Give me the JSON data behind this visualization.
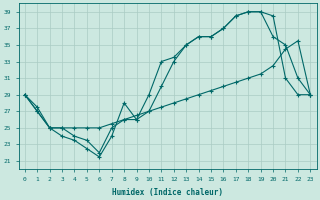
{
  "xlabel": "Humidex (Indice chaleur)",
  "bg_color": "#cce8e0",
  "grid_color": "#aaccc4",
  "line_color": "#006868",
  "xlim": [
    -0.5,
    23.5
  ],
  "ylim": [
    20,
    40
  ],
  "xticks": [
    0,
    1,
    2,
    3,
    4,
    5,
    6,
    7,
    8,
    9,
    10,
    11,
    12,
    13,
    14,
    15,
    16,
    17,
    18,
    19,
    20,
    21,
    22,
    23
  ],
  "yticks": [
    21,
    23,
    25,
    27,
    29,
    31,
    33,
    35,
    37,
    39
  ],
  "line1_x": [
    0,
    1,
    2,
    3,
    4,
    5,
    6,
    7,
    8,
    9,
    10,
    11,
    12,
    13,
    14,
    15,
    16,
    17,
    18,
    19,
    20,
    21,
    22,
    23
  ],
  "line1_y": [
    29,
    27,
    25,
    24,
    23.5,
    22.5,
    21.5,
    24,
    28,
    26,
    27,
    30,
    33,
    35,
    36,
    36,
    37,
    38.5,
    39,
    39,
    38.5,
    31,
    29,
    29
  ],
  "line2_x": [
    0,
    1,
    2,
    3,
    4,
    5,
    6,
    7,
    8,
    9,
    10,
    11,
    12,
    13,
    14,
    15,
    16,
    17,
    18,
    19,
    20,
    21,
    22,
    23
  ],
  "line2_y": [
    29,
    27,
    25,
    25,
    24,
    23.5,
    22,
    25,
    26,
    26,
    29,
    33,
    33.5,
    35,
    36,
    36,
    37,
    38.5,
    39,
    39,
    36,
    35,
    31,
    29
  ],
  "line3_x": [
    0,
    1,
    2,
    3,
    4,
    5,
    6,
    7,
    8,
    9,
    10,
    11,
    12,
    13,
    14,
    15,
    16,
    17,
    18,
    19,
    20,
    21,
    22,
    23
  ],
  "line3_y": [
    29,
    27.5,
    25,
    25,
    25,
    25,
    25,
    25.5,
    26,
    26.5,
    27,
    27.5,
    28,
    28.5,
    29,
    29.5,
    30,
    30.5,
    31,
    31.5,
    32.5,
    34.5,
    35.5,
    29
  ],
  "marker_size": 2.0,
  "line_width": 0.8,
  "font_size_tick": 4.5,
  "font_size_label": 5.5
}
